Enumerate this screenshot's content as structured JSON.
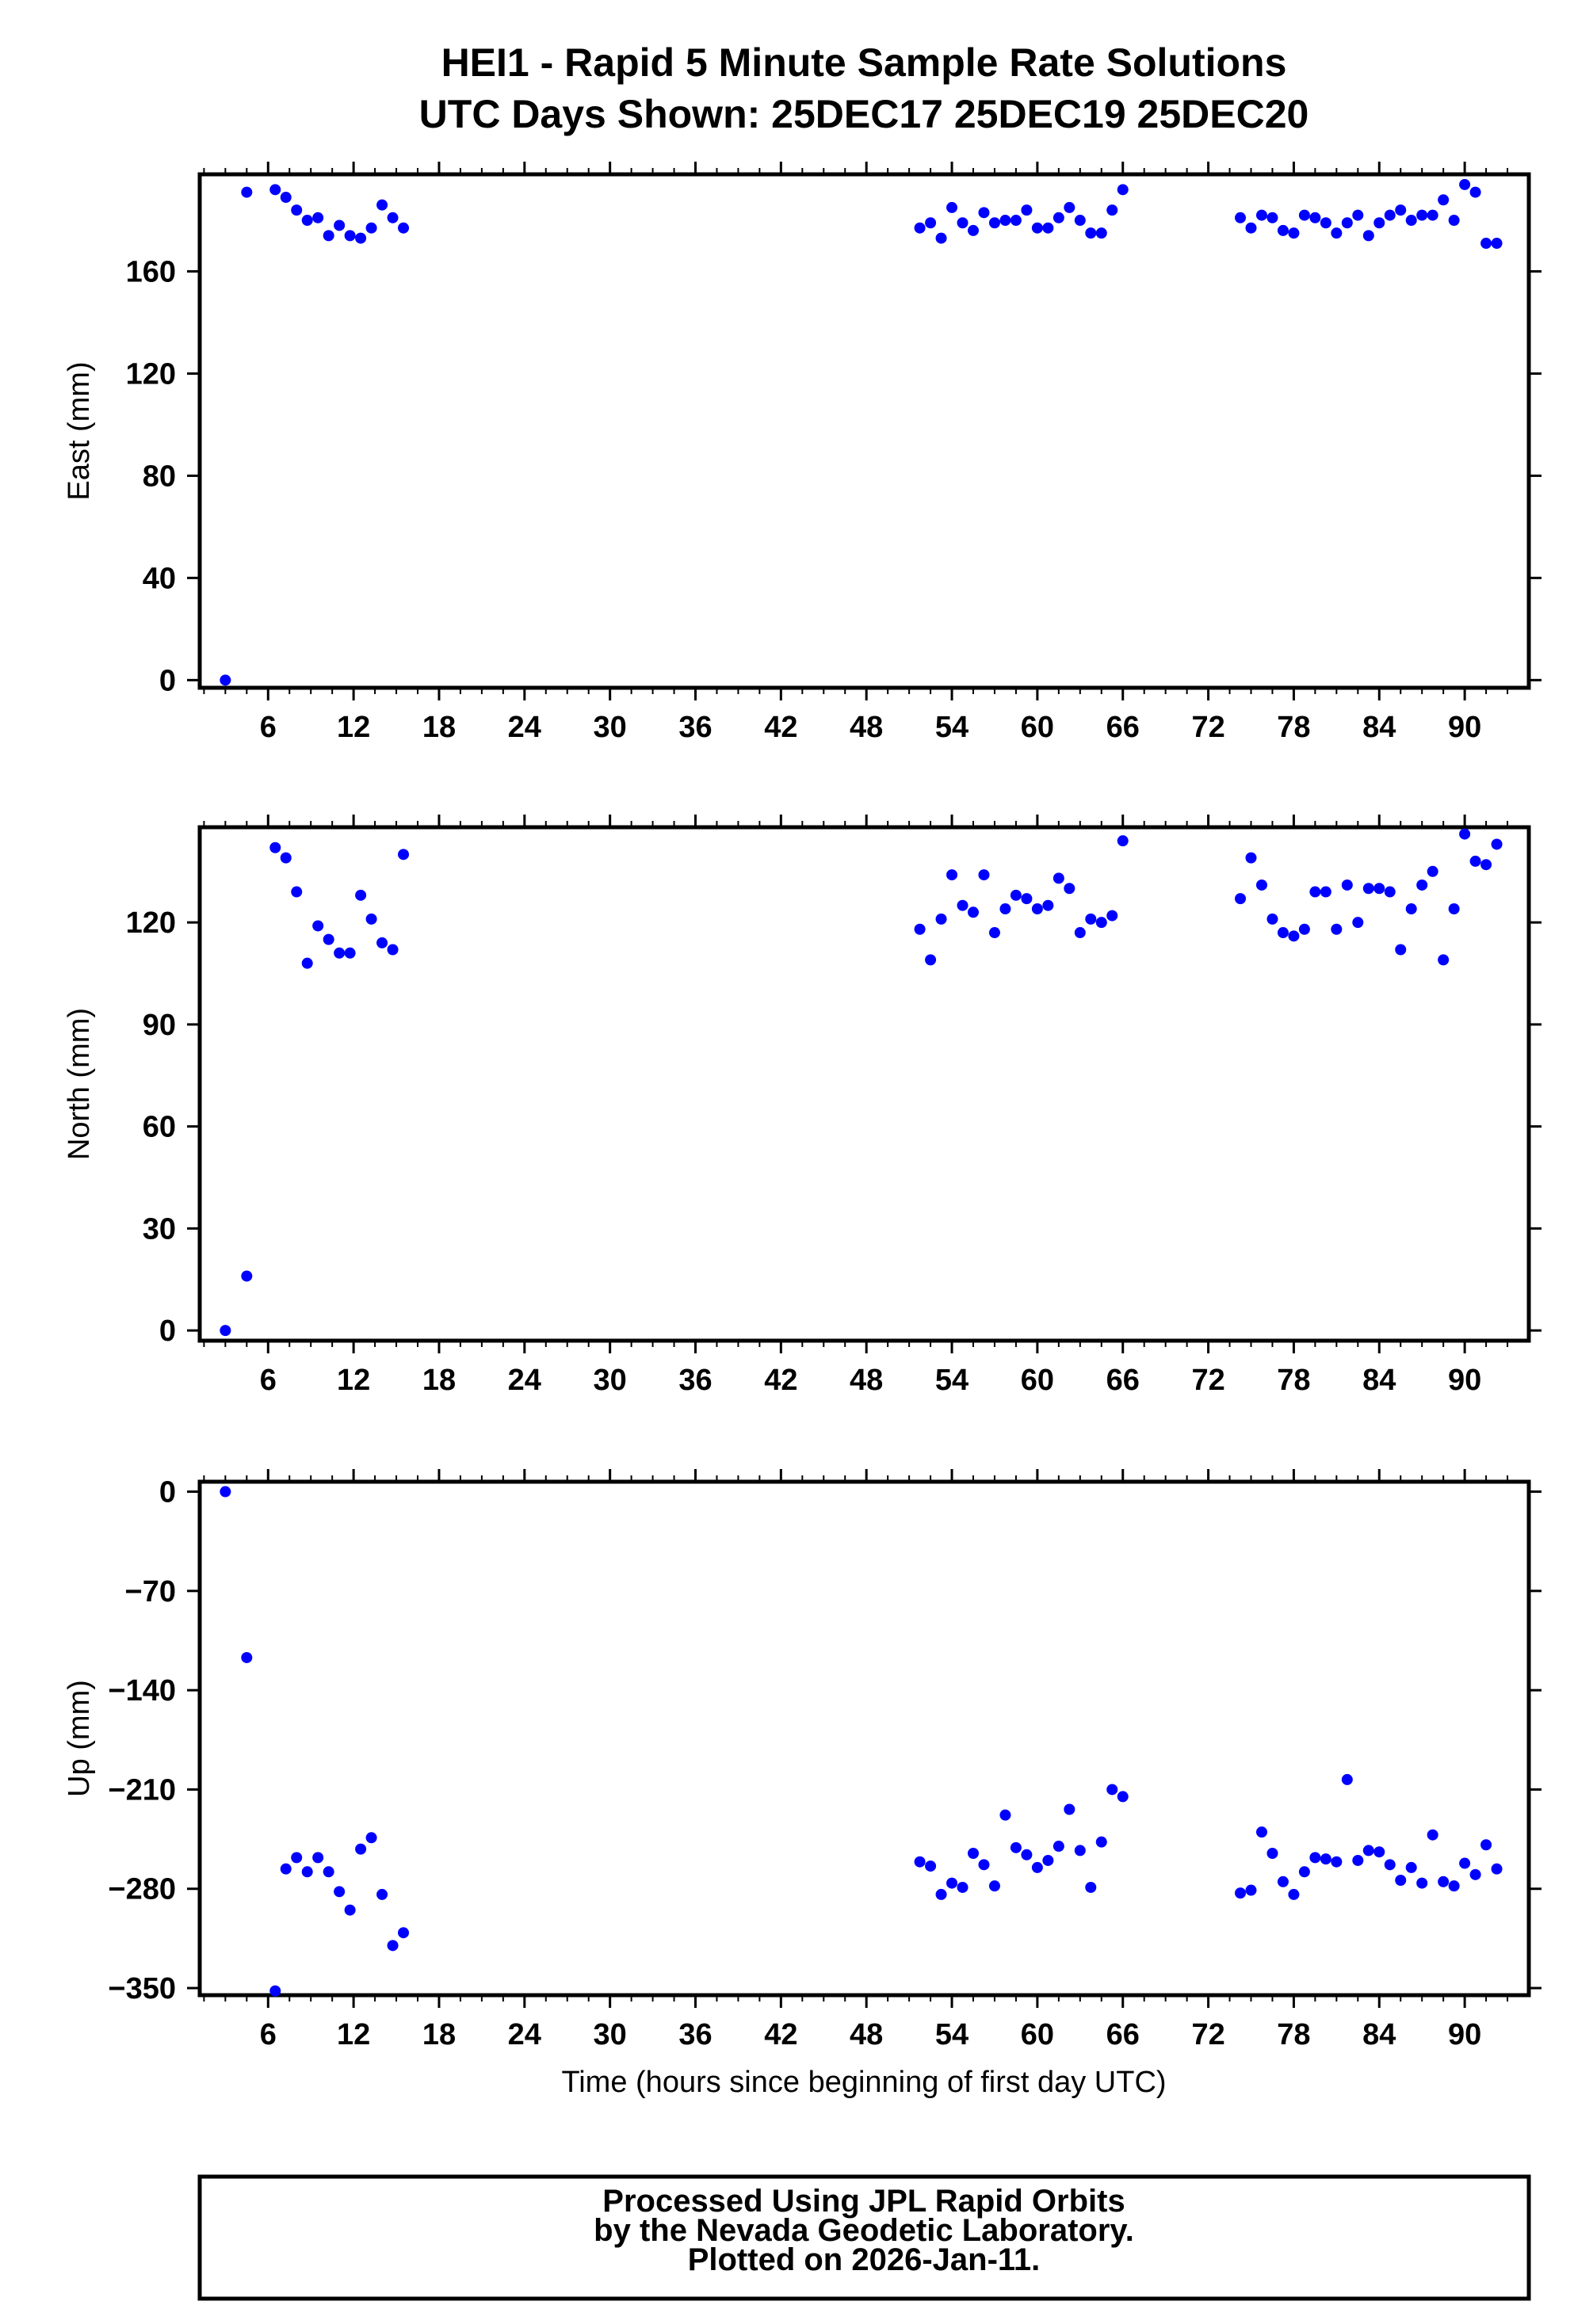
{
  "title": "HEI1 - Rapid 5 Minute Sample Rate Solutions",
  "subtitle": "UTC Days Shown:  25DEC17 25DEC19 25DEC20",
  "xlabel": "Time (hours since beginning of first day UTC)",
  "footer": {
    "line1": "Processed Using JPL Rapid Orbits",
    "line2": "by the Nevada Geodetic Laboratory.",
    "line3": "Plotted on 2026-Jan-11."
  },
  "chart_data": [
    {
      "type": "scatter",
      "ylabel": "East (mm)",
      "xlim": [
        1.2,
        94.5
      ],
      "ylim": [
        -3,
        198
      ],
      "xticks": [
        6,
        12,
        18,
        24,
        30,
        36,
        42,
        48,
        54,
        60,
        66,
        72,
        78,
        84,
        90
      ],
      "yticks": [
        0,
        40,
        80,
        120,
        160
      ],
      "grid": false,
      "color": "#0000ff",
      "x": [
        3.0,
        4.5,
        6.5,
        7.25,
        8.0,
        8.75,
        9.5,
        10.25,
        11.0,
        11.75,
        12.5,
        13.25,
        14.0,
        14.75,
        15.5,
        51.75,
        52.5,
        53.25,
        54.0,
        54.75,
        55.5,
        56.25,
        57.0,
        57.75,
        58.5,
        59.25,
        60.0,
        60.75,
        61.5,
        62.25,
        63.0,
        63.75,
        64.5,
        65.25,
        66.0,
        74.25,
        75.0,
        75.75,
        76.5,
        77.25,
        78.0,
        78.75,
        79.5,
        80.25,
        81.0,
        81.75,
        82.5,
        83.25,
        84.0,
        84.75,
        85.5,
        86.25,
        87.0,
        87.75,
        88.5,
        89.25,
        90.0,
        90.75,
        91.5,
        92.25
      ],
      "y": [
        0,
        191,
        192,
        189,
        184,
        180,
        181,
        174,
        178,
        174,
        173,
        177,
        186,
        181,
        177,
        177,
        179,
        173,
        185,
        179,
        176,
        183,
        179,
        180,
        180,
        184,
        177,
        177,
        181,
        185,
        180,
        175,
        175,
        184,
        192,
        181,
        177,
        182,
        181,
        176,
        175,
        182,
        181,
        179,
        175,
        179,
        182,
        174,
        179,
        182,
        184,
        180,
        182,
        182,
        188,
        180,
        194,
        191,
        171,
        171
      ]
    },
    {
      "type": "scatter",
      "ylabel": "North (mm)",
      "xlim": [
        1.2,
        94.5
      ],
      "ylim": [
        -3,
        148
      ],
      "xticks": [
        6,
        12,
        18,
        24,
        30,
        36,
        42,
        48,
        54,
        60,
        66,
        72,
        78,
        84,
        90
      ],
      "yticks": [
        0,
        30,
        60,
        90,
        120
      ],
      "grid": false,
      "color": "#0000ff",
      "x": [
        3.0,
        4.5,
        6.5,
        7.25,
        8.0,
        8.75,
        9.5,
        10.25,
        11.0,
        11.75,
        12.5,
        13.25,
        14.0,
        14.75,
        15.5,
        51.75,
        52.5,
        53.25,
        54.0,
        54.75,
        55.5,
        56.25,
        57.0,
        57.75,
        58.5,
        59.25,
        60.0,
        60.75,
        61.5,
        62.25,
        63.0,
        63.75,
        64.5,
        65.25,
        66.0,
        74.25,
        75.0,
        75.75,
        76.5,
        77.25,
        78.0,
        78.75,
        79.5,
        80.25,
        81.0,
        81.75,
        82.5,
        83.25,
        84.0,
        84.75,
        85.5,
        86.25,
        87.0,
        87.75,
        88.5,
        89.25,
        90.0,
        90.75,
        91.5,
        92.25
      ],
      "y": [
        0,
        16,
        142,
        139,
        129,
        108,
        119,
        115,
        111,
        111,
        128,
        121,
        114,
        112,
        140,
        118,
        109,
        121,
        134,
        125,
        123,
        134,
        117,
        124,
        128,
        127,
        124,
        125,
        133,
        130,
        117,
        121,
        120,
        122,
        144,
        127,
        139,
        131,
        121,
        117,
        116,
        118,
        129,
        129,
        118,
        131,
        120,
        130,
        130,
        129,
        112,
        124,
        131,
        135,
        109,
        124,
        146,
        138,
        137,
        143
      ]
    },
    {
      "type": "scatter",
      "ylabel": "Up (mm)",
      "xlim": [
        1.2,
        94.5
      ],
      "ylim": [
        -355,
        7
      ],
      "xticks": [
        6,
        12,
        18,
        24,
        30,
        36,
        42,
        48,
        54,
        60,
        66,
        72,
        78,
        84,
        90
      ],
      "yticks": [
        0,
        -70,
        -140,
        -210,
        -280,
        -350
      ],
      "grid": false,
      "color": "#0000ff",
      "x": [
        3.0,
        4.5,
        6.5,
        7.25,
        8.0,
        8.75,
        9.5,
        10.25,
        11.0,
        11.75,
        12.5,
        13.25,
        14.0,
        14.75,
        15.5,
        51.75,
        52.5,
        53.25,
        54.0,
        54.75,
        55.5,
        56.25,
        57.0,
        57.75,
        58.5,
        59.25,
        60.0,
        60.75,
        61.5,
        62.25,
        63.0,
        63.75,
        64.5,
        65.25,
        66.0,
        74.25,
        75.0,
        75.75,
        76.5,
        77.25,
        78.0,
        78.75,
        79.5,
        80.25,
        81.0,
        81.75,
        82.5,
        83.25,
        84.0,
        84.75,
        85.5,
        86.25,
        87.0,
        87.75,
        88.5,
        89.25,
        90.0,
        90.75,
        91.5,
        92.25
      ],
      "y": [
        0,
        -117,
        -352,
        -266,
        -258,
        -268,
        -258,
        -268,
        -282,
        -295,
        -252,
        -244,
        -284,
        -320,
        -311,
        -261,
        -264,
        -284,
        -276,
        -279,
        -255,
        -263,
        -278,
        -228,
        -251,
        -256,
        -265,
        -260,
        -250,
        -224,
        -253,
        -279,
        -247,
        -210,
        -215,
        -283,
        -281,
        -240,
        -255,
        -275,
        -284,
        -268,
        -258,
        -259,
        -261,
        -203,
        -260,
        -253,
        -254,
        -263,
        -274,
        -265,
        -276,
        -242,
        -275,
        -278,
        -262,
        -270,
        -249,
        -266
      ]
    }
  ]
}
